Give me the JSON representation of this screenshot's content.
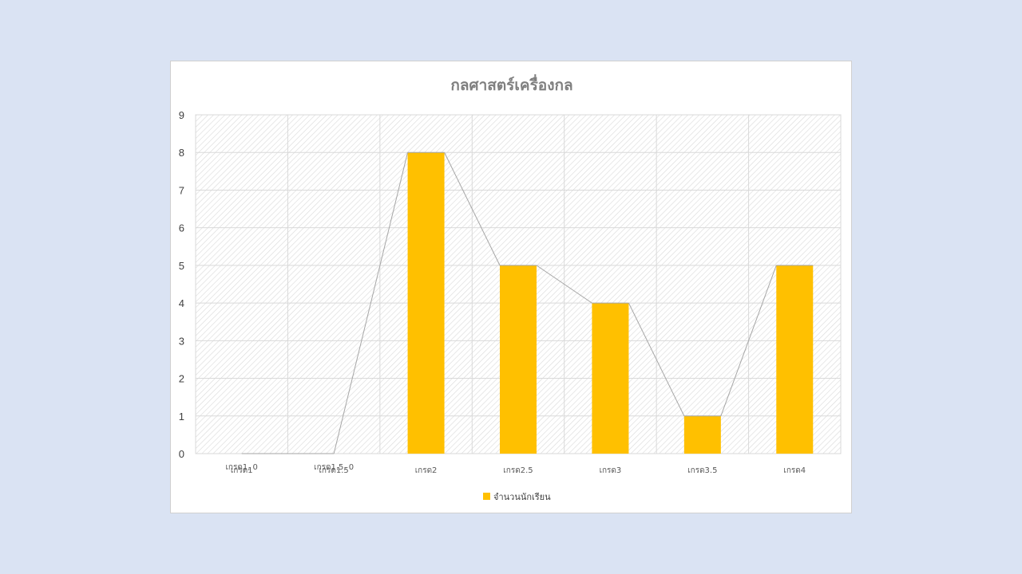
{
  "chart_data": {
    "type": "bar",
    "title": "กลศาสตร์เครื่องกล",
    "categories": [
      "เกรด1",
      "เกรด1.5",
      "เกรด2",
      "เกรด2.5",
      "เกรด3",
      "เกรด3.5",
      "เกรด4"
    ],
    "series": [
      {
        "name": "จำนวนนักเรียน",
        "values": [
          0,
          0,
          8,
          5,
          4,
          1,
          5
        ],
        "color": "#ffc000"
      }
    ],
    "data_labels": [
      "เกรด1, 0",
      "เกรด1.5, 0"
    ],
    "overlay_line_color": "#a6a6a6",
    "ylim": [
      0,
      9
    ],
    "yticks": [
      0,
      1,
      2,
      3,
      4,
      5,
      6,
      7,
      8,
      9
    ],
    "grid": true,
    "plot_background": "hatched",
    "legend_position": "bottom"
  }
}
